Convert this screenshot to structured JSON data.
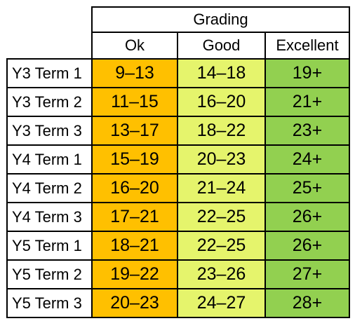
{
  "grading": {
    "title": "Grading",
    "columns": [
      "Ok",
      "Good",
      "Excellent"
    ],
    "colors": {
      "ok": "#ffc000",
      "good": "#e5f46c",
      "excellent": "#92d050"
    },
    "rows": [
      {
        "label": "Y3 Term 1",
        "ok": "9–13",
        "good": "14–18",
        "excellent": "19+"
      },
      {
        "label": "Y3 Term 2",
        "ok": "11–15",
        "good": "16–20",
        "excellent": "21+"
      },
      {
        "label": "Y3 Term 3",
        "ok": "13–17",
        "good": "18–22",
        "excellent": "23+"
      },
      {
        "label": "Y4 Term 1",
        "ok": "15–19",
        "good": "20–23",
        "excellent": "24+"
      },
      {
        "label": "Y4 Term 2",
        "ok": "16–20",
        "good": "21–24",
        "excellent": "25+"
      },
      {
        "label": "Y4 Term 3",
        "ok": "17–21",
        "good": "22–25",
        "excellent": "26+"
      },
      {
        "label": "Y5 Term 1",
        "ok": "18–21",
        "good": "22–25",
        "excellent": "26+"
      },
      {
        "label": "Y5 Term 2",
        "ok": "19–22",
        "good": "23–26",
        "excellent": "27+"
      },
      {
        "label": "Y5 Term 3",
        "ok": "20–23",
        "good": "24–27",
        "excellent": "28+"
      }
    ]
  }
}
